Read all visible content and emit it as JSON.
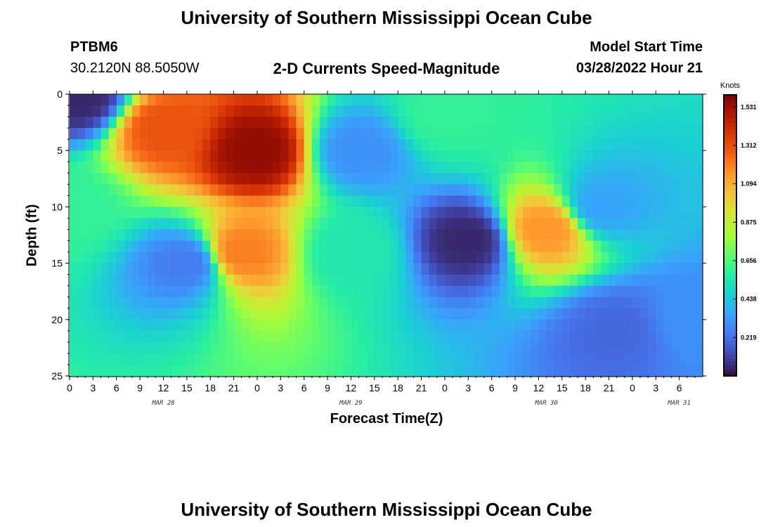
{
  "header": {
    "title": "University of Southern Mississippi Ocean Cube",
    "station": "PTBM6",
    "coords": "30.2120N  88.5050W",
    "subtitle": "2-D Currents Speed-Magnitude",
    "model_start_label": "Model Start Time",
    "model_start_value": "03/28/2022 Hour 21"
  },
  "footer": {
    "title": "University of Southern Mississippi Ocean Cube"
  },
  "chart_data": {
    "type": "heatmap",
    "title": "2-D Currents Speed-Magnitude",
    "xlabel": "Forecast Time(Z)",
    "ylabel": "Depth (ft)",
    "x_range_hours": [
      0,
      81
    ],
    "y_range_ft": [
      0,
      25
    ],
    "x_ticks": [
      "0",
      "3",
      "6",
      "9",
      "12",
      "15",
      "18",
      "21",
      "0",
      "3",
      "6",
      "9",
      "12",
      "15",
      "18",
      "21",
      "0",
      "3",
      "6",
      "9",
      "12",
      "15",
      "18",
      "21",
      "0",
      "3",
      "6"
    ],
    "date_labels": [
      {
        "label": "MAR 28",
        "hour": 12
      },
      {
        "label": "MAR 29",
        "hour": 36
      },
      {
        "label": "MAR 30",
        "hour": 61
      },
      {
        "label": "MAR 31",
        "hour": 78
      }
    ],
    "y_ticks": [
      "0",
      "5",
      "10",
      "15",
      "20",
      "25"
    ],
    "y_tick_values": [
      0,
      5,
      10,
      15,
      20,
      25
    ],
    "colorbar": {
      "unit": "Knots",
      "min": 0.0,
      "max": 1.6,
      "ticks": [
        "1.531",
        "1.312",
        "1.094",
        "0.875",
        "0.656",
        "0.438",
        "0.219"
      ],
      "tick_values": [
        1.531,
        1.312,
        1.094,
        0.875,
        0.656,
        0.438,
        0.219
      ],
      "colors": [
        "#30123b",
        "#4145ab",
        "#4675ed",
        "#39a2fc",
        "#1bcfd4",
        "#24eca6",
        "#61fc6c",
        "#a4fc3b",
        "#d1e834",
        "#f3c63a",
        "#fe9b2d",
        "#f36315",
        "#d93806",
        "#b11901",
        "#7a0403"
      ]
    },
    "field_features": [
      {
        "hour": 0,
        "depth": 10,
        "speed": 0.6
      },
      {
        "hour": 1.5,
        "depth": 0.3,
        "speed": 0.05
      },
      {
        "hour": 12,
        "depth": 3,
        "speed": 1.3
      },
      {
        "hour": 15,
        "depth": 15,
        "speed": 0.25
      },
      {
        "hour": 24,
        "depth": 5,
        "speed": 1.55
      },
      {
        "hour": 22,
        "depth": 14,
        "speed": 1.2
      },
      {
        "hour": 36,
        "depth": 14,
        "speed": 0.55
      },
      {
        "hour": 37,
        "depth": 5,
        "speed": 0.3
      },
      {
        "hour": 48,
        "depth": 2,
        "speed": 0.6
      },
      {
        "hour": 51,
        "depth": 13,
        "speed": 0.05
      },
      {
        "hour": 61,
        "depth": 12,
        "speed": 1.15
      },
      {
        "hour": 68,
        "depth": 10,
        "speed": 0.35
      },
      {
        "hour": 70,
        "depth": 21,
        "speed": 0.2
      },
      {
        "hour": 80,
        "depth": 20,
        "speed": 0.3
      }
    ]
  }
}
